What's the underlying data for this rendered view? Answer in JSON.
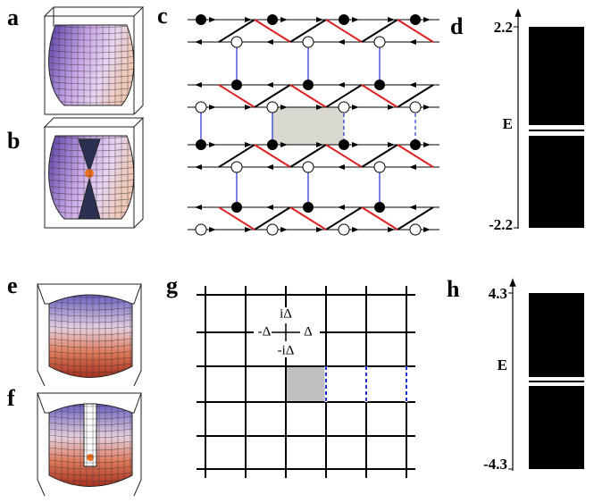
{
  "panel_labels": [
    "a",
    "b",
    "c",
    "d",
    "e",
    "f",
    "g",
    "h"
  ],
  "spectrum_d": {
    "top": "2.2",
    "axis": "E",
    "bottom": "-2.2"
  },
  "lattice_g": {
    "up": "iΔ",
    "left": "-Δ",
    "right": "Δ",
    "down": "-iΔ"
  },
  "spectrum_h": {
    "top": "4.3",
    "axis": "E",
    "bottom": "-4.3"
  }
}
